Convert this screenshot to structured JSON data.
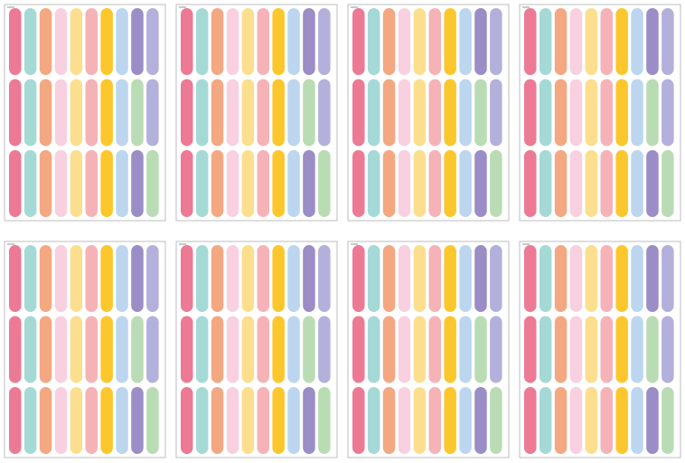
{
  "sticker_colors": [
    [
      "#ec7a95",
      "#a5d9d6",
      "#f3a882",
      "#f9d0e0",
      "#fbdf8e",
      "#f5b3b8",
      "#fcc72c",
      "#bcd6ef",
      "#9b8dc6",
      "#b3b0dc"
    ],
    [
      "#ec7a95",
      "#a5d9d6",
      "#f3a882",
      "#f9d0e0",
      "#fbdf8e",
      "#f5b3b8",
      "#fcc72c",
      "#bcd6ef",
      "#b9dcb4",
      "#b3b0dc"
    ],
    [
      "#ec7a95",
      "#a5d9d6",
      "#f3a882",
      "#f9d0e0",
      "#fbdf8e",
      "#f5b3b8",
      "#fcc72c",
      "#bcd6ef",
      "#9b8dc6",
      "#b9dcb4"
    ]
  ]
}
